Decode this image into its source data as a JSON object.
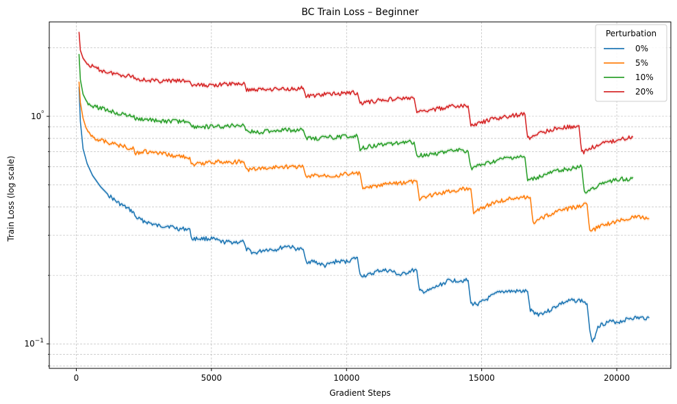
{
  "chart_data": {
    "type": "line",
    "title": "BC Train Loss – Beginner",
    "xlabel": "Gradient Steps",
    "ylabel": "Train Loss (log scale)",
    "xlim": [
      -1000,
      22000
    ],
    "ylim": [
      0.078,
      2.6
    ],
    "yscale": "log",
    "grid": true,
    "x_ticks": [
      0,
      5000,
      10000,
      15000,
      20000
    ],
    "x_tick_labels": [
      "0",
      "5000",
      "10000",
      "15000",
      "20000"
    ],
    "y_major_ticks": [
      0.1,
      1.0
    ],
    "y_tick_labels": [
      "10−1",
      "10⁰"
    ],
    "y_minor_ticks": [
      0.08,
      0.09,
      0.2,
      0.3,
      0.4,
      0.5,
      0.6,
      0.7,
      0.8,
      0.9,
      2.0
    ],
    "legend": {
      "title": "Perturbation",
      "position": "top-right"
    },
    "series": [
      {
        "name": "0%",
        "color": "#1f77b4",
        "points": [
          [
            100,
            1.35
          ],
          [
            150,
            0.95
          ],
          [
            250,
            0.72
          ],
          [
            400,
            0.62
          ],
          [
            600,
            0.55
          ],
          [
            900,
            0.49
          ],
          [
            1200,
            0.45
          ],
          [
            1500,
            0.42
          ],
          [
            1800,
            0.4
          ],
          [
            2100,
            0.38
          ],
          [
            2200,
            0.36
          ],
          [
            2400,
            0.35
          ],
          [
            2700,
            0.34
          ],
          [
            3000,
            0.33
          ],
          [
            3400,
            0.33
          ],
          [
            3800,
            0.32
          ],
          [
            4200,
            0.32
          ],
          [
            4250,
            0.29
          ],
          [
            4600,
            0.29
          ],
          [
            5000,
            0.29
          ],
          [
            5400,
            0.28
          ],
          [
            5800,
            0.28
          ],
          [
            6200,
            0.28
          ],
          [
            6300,
            0.26
          ],
          [
            6600,
            0.25
          ],
          [
            7000,
            0.26
          ],
          [
            7400,
            0.26
          ],
          [
            7800,
            0.27
          ],
          [
            8200,
            0.26
          ],
          [
            8400,
            0.26
          ],
          [
            8500,
            0.23
          ],
          [
            8800,
            0.23
          ],
          [
            9200,
            0.22
          ],
          [
            9600,
            0.23
          ],
          [
            10000,
            0.23
          ],
          [
            10400,
            0.24
          ],
          [
            10500,
            0.2
          ],
          [
            10800,
            0.2
          ],
          [
            11200,
            0.21
          ],
          [
            11600,
            0.21
          ],
          [
            12000,
            0.2
          ],
          [
            12400,
            0.21
          ],
          [
            12600,
            0.21
          ],
          [
            12700,
            0.17
          ],
          [
            13000,
            0.17
          ],
          [
            13400,
            0.18
          ],
          [
            13800,
            0.19
          ],
          [
            14200,
            0.19
          ],
          [
            14500,
            0.19
          ],
          [
            14600,
            0.15
          ],
          [
            14900,
            0.15
          ],
          [
            15300,
            0.16
          ],
          [
            15700,
            0.17
          ],
          [
            16100,
            0.17
          ],
          [
            16500,
            0.17
          ],
          [
            16700,
            0.17
          ],
          [
            16800,
            0.14
          ],
          [
            17100,
            0.135
          ],
          [
            17500,
            0.14
          ],
          [
            17900,
            0.15
          ],
          [
            18300,
            0.155
          ],
          [
            18700,
            0.155
          ],
          [
            18900,
            0.15
          ],
          [
            19000,
            0.115
          ],
          [
            19100,
            0.1
          ],
          [
            19300,
            0.12
          ],
          [
            19700,
            0.125
          ],
          [
            20100,
            0.125
          ],
          [
            20500,
            0.13
          ],
          [
            20900,
            0.13
          ],
          [
            21200,
            0.13
          ]
        ]
      },
      {
        "name": "5%",
        "color": "#ff7f0e",
        "points": [
          [
            100,
            1.42
          ],
          [
            150,
            1.15
          ],
          [
            250,
            0.98
          ],
          [
            400,
            0.86
          ],
          [
            700,
            0.8
          ],
          [
            1000,
            0.78
          ],
          [
            1300,
            0.76
          ],
          [
            1700,
            0.74
          ],
          [
            2100,
            0.72
          ],
          [
            2200,
            0.69
          ],
          [
            2500,
            0.7
          ],
          [
            2900,
            0.69
          ],
          [
            3300,
            0.68
          ],
          [
            3700,
            0.67
          ],
          [
            4200,
            0.66
          ],
          [
            4250,
            0.61
          ],
          [
            4600,
            0.62
          ],
          [
            5000,
            0.63
          ],
          [
            5400,
            0.63
          ],
          [
            5800,
            0.63
          ],
          [
            6200,
            0.63
          ],
          [
            6300,
            0.58
          ],
          [
            6700,
            0.59
          ],
          [
            7100,
            0.59
          ],
          [
            7500,
            0.6
          ],
          [
            7900,
            0.6
          ],
          [
            8300,
            0.6
          ],
          [
            8400,
            0.6
          ],
          [
            8500,
            0.54
          ],
          [
            8900,
            0.55
          ],
          [
            9300,
            0.55
          ],
          [
            9700,
            0.55
          ],
          [
            10100,
            0.56
          ],
          [
            10500,
            0.56
          ],
          [
            10600,
            0.48
          ],
          [
            11000,
            0.49
          ],
          [
            11400,
            0.5
          ],
          [
            11800,
            0.51
          ],
          [
            12200,
            0.51
          ],
          [
            12600,
            0.52
          ],
          [
            12700,
            0.43
          ],
          [
            13100,
            0.45
          ],
          [
            13500,
            0.46
          ],
          [
            13900,
            0.47
          ],
          [
            14300,
            0.48
          ],
          [
            14600,
            0.48
          ],
          [
            14700,
            0.38
          ],
          [
            15100,
            0.4
          ],
          [
            15500,
            0.42
          ],
          [
            15900,
            0.43
          ],
          [
            16300,
            0.44
          ],
          [
            16800,
            0.44
          ],
          [
            16900,
            0.34
          ],
          [
            17300,
            0.36
          ],
          [
            17700,
            0.38
          ],
          [
            18100,
            0.39
          ],
          [
            18500,
            0.4
          ],
          [
            18900,
            0.41
          ],
          [
            19000,
            0.31
          ],
          [
            19400,
            0.33
          ],
          [
            19800,
            0.34
          ],
          [
            20200,
            0.35
          ],
          [
            20600,
            0.36
          ],
          [
            21000,
            0.36
          ],
          [
            21200,
            0.355
          ]
        ]
      },
      {
        "name": "10%",
        "color": "#2ca02c",
        "points": [
          [
            100,
            1.88
          ],
          [
            150,
            1.45
          ],
          [
            250,
            1.25
          ],
          [
            400,
            1.15
          ],
          [
            700,
            1.1
          ],
          [
            1000,
            1.08
          ],
          [
            1300,
            1.05
          ],
          [
            1700,
            1.02
          ],
          [
            2100,
            1.0
          ],
          [
            2200,
            0.97
          ],
          [
            2500,
            0.97
          ],
          [
            2900,
            0.96
          ],
          [
            3300,
            0.95
          ],
          [
            3700,
            0.95
          ],
          [
            4200,
            0.95
          ],
          [
            4250,
            0.9
          ],
          [
            4600,
            0.9
          ],
          [
            5000,
            0.9
          ],
          [
            5400,
            0.9
          ],
          [
            5800,
            0.91
          ],
          [
            6200,
            0.92
          ],
          [
            6300,
            0.86
          ],
          [
            6700,
            0.85
          ],
          [
            7100,
            0.86
          ],
          [
            7500,
            0.87
          ],
          [
            7900,
            0.87
          ],
          [
            8300,
            0.87
          ],
          [
            8400,
            0.87
          ],
          [
            8500,
            0.8
          ],
          [
            8900,
            0.8
          ],
          [
            9300,
            0.81
          ],
          [
            9700,
            0.81
          ],
          [
            10100,
            0.82
          ],
          [
            10400,
            0.82
          ],
          [
            10500,
            0.72
          ],
          [
            10900,
            0.74
          ],
          [
            11300,
            0.75
          ],
          [
            11700,
            0.76
          ],
          [
            12100,
            0.77
          ],
          [
            12500,
            0.77
          ],
          [
            12600,
            0.67
          ],
          [
            13000,
            0.68
          ],
          [
            13400,
            0.69
          ],
          [
            13800,
            0.7
          ],
          [
            14200,
            0.71
          ],
          [
            14500,
            0.7
          ],
          [
            14600,
            0.59
          ],
          [
            15000,
            0.61
          ],
          [
            15400,
            0.63
          ],
          [
            15800,
            0.65
          ],
          [
            16200,
            0.66
          ],
          [
            16600,
            0.66
          ],
          [
            16700,
            0.52
          ],
          [
            17100,
            0.54
          ],
          [
            17500,
            0.56
          ],
          [
            17900,
            0.58
          ],
          [
            18300,
            0.59
          ],
          [
            18700,
            0.6
          ],
          [
            18800,
            0.46
          ],
          [
            19200,
            0.49
          ],
          [
            19600,
            0.51
          ],
          [
            20000,
            0.53
          ],
          [
            20400,
            0.53
          ],
          [
            20600,
            0.54
          ]
        ]
      },
      {
        "name": "20%",
        "color": "#d62728",
        "points": [
          [
            100,
            2.35
          ],
          [
            150,
            1.95
          ],
          [
            250,
            1.8
          ],
          [
            400,
            1.7
          ],
          [
            700,
            1.63
          ],
          [
            1000,
            1.58
          ],
          [
            1300,
            1.55
          ],
          [
            1700,
            1.52
          ],
          [
            2100,
            1.5
          ],
          [
            2200,
            1.46
          ],
          [
            2500,
            1.45
          ],
          [
            2900,
            1.43
          ],
          [
            3300,
            1.43
          ],
          [
            3700,
            1.43
          ],
          [
            4200,
            1.43
          ],
          [
            4250,
            1.37
          ],
          [
            4600,
            1.37
          ],
          [
            5000,
            1.37
          ],
          [
            5400,
            1.38
          ],
          [
            5800,
            1.39
          ],
          [
            6200,
            1.39
          ],
          [
            6300,
            1.31
          ],
          [
            6700,
            1.31
          ],
          [
            7100,
            1.32
          ],
          [
            7500,
            1.32
          ],
          [
            7900,
            1.32
          ],
          [
            8300,
            1.33
          ],
          [
            8400,
            1.33
          ],
          [
            8500,
            1.22
          ],
          [
            8900,
            1.24
          ],
          [
            9300,
            1.25
          ],
          [
            9700,
            1.26
          ],
          [
            10100,
            1.27
          ],
          [
            10400,
            1.27
          ],
          [
            10500,
            1.14
          ],
          [
            10900,
            1.16
          ],
          [
            11300,
            1.18
          ],
          [
            11700,
            1.19
          ],
          [
            12100,
            1.2
          ],
          [
            12500,
            1.2
          ],
          [
            12600,
            1.04
          ],
          [
            13000,
            1.06
          ],
          [
            13400,
            1.08
          ],
          [
            13800,
            1.1
          ],
          [
            14200,
            1.11
          ],
          [
            14500,
            1.11
          ],
          [
            14600,
            0.91
          ],
          [
            15000,
            0.94
          ],
          [
            15400,
            0.97
          ],
          [
            15800,
            0.99
          ],
          [
            16200,
            1.01
          ],
          [
            16600,
            1.02
          ],
          [
            16700,
            0.8
          ],
          [
            17100,
            0.84
          ],
          [
            17500,
            0.87
          ],
          [
            17900,
            0.89
          ],
          [
            18300,
            0.9
          ],
          [
            18600,
            0.91
          ],
          [
            18700,
            0.69
          ],
          [
            19100,
            0.73
          ],
          [
            19500,
            0.76
          ],
          [
            19900,
            0.78
          ],
          [
            20300,
            0.8
          ],
          [
            20600,
            0.81
          ]
        ]
      }
    ]
  }
}
